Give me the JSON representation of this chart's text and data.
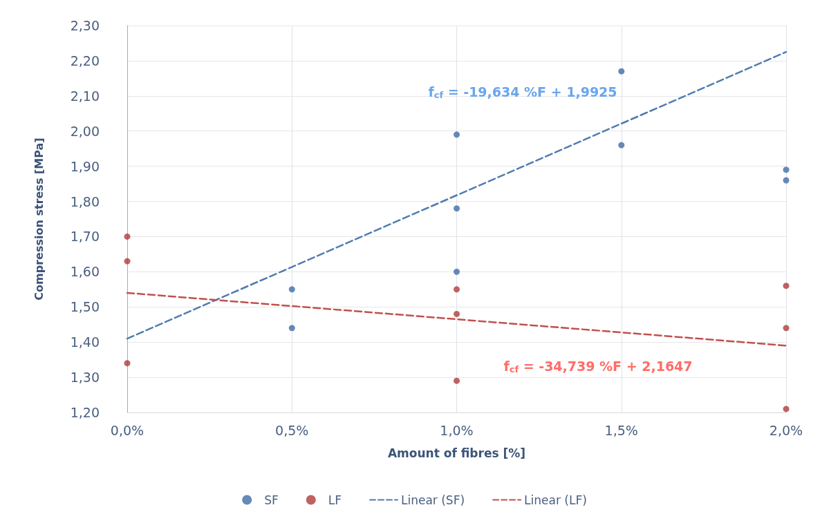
{
  "chart_data": {
    "type": "scatter",
    "xlabel": "Amount of fibres [%]",
    "ylabel": "Compression stress [MPa]",
    "xlim": [
      0,
      2
    ],
    "xticks": [
      {
        "value": 0,
        "label": "0,0%"
      },
      {
        "value": 0.5,
        "label": "0,5%"
      },
      {
        "value": 1,
        "label": "1,0%"
      },
      {
        "value": 1.5,
        "label": "1,5%"
      },
      {
        "value": 2,
        "label": "2,0%"
      }
    ],
    "ylim": [
      1.2,
      2.3
    ],
    "yticks": [
      {
        "value": 1.2,
        "label": "1,20"
      },
      {
        "value": 1.3,
        "label": "1,30"
      },
      {
        "value": 1.4,
        "label": "1,40"
      },
      {
        "value": 1.5,
        "label": "1,50"
      },
      {
        "value": 1.6,
        "label": "1,60"
      },
      {
        "value": 1.7,
        "label": "1,70"
      },
      {
        "value": 1.8,
        "label": "1,80"
      },
      {
        "value": 1.9,
        "label": "1,90"
      },
      {
        "value": 2.0,
        "label": "2,00"
      },
      {
        "value": 2.1,
        "label": "2,10"
      },
      {
        "value": 2.2,
        "label": "2,20"
      },
      {
        "value": 2.3,
        "label": "2,30"
      }
    ],
    "grid": true,
    "legend": "bottom",
    "series": [
      {
        "name": "SF",
        "marker": "circle",
        "color": "#3e6da6",
        "x": [
          0.5,
          0.5,
          1,
          1,
          1,
          1.5,
          1.5,
          2,
          2
        ],
        "values": [
          1.55,
          1.44,
          1.99,
          1.78,
          1.6,
          2.17,
          1.96,
          1.89,
          1.86
        ]
      },
      {
        "name": "LF",
        "marker": "circle",
        "color": "#b23b3b",
        "x": [
          0,
          0,
          0,
          1,
          1,
          1,
          2,
          2,
          2
        ],
        "values": [
          1.7,
          1.63,
          1.34,
          1.55,
          1.48,
          1.29,
          1.56,
          1.44,
          1.21
        ]
      },
      {
        "name": "Linear (SF)",
        "type": "line",
        "marker": "none",
        "color": "#4f7bb0",
        "line_style": "dashed",
        "x": [
          0,
          2
        ],
        "values": [
          1.41,
          2.225
        ]
      },
      {
        "name": "Linear (LF)",
        "type": "line",
        "marker": "none",
        "color": "#c0504d",
        "line_style": "dashed",
        "x": [
          0,
          2
        ],
        "values": [
          1.54,
          1.39
        ]
      }
    ],
    "annotations": [
      "f$_{cf}$ = -19,634 %F + 1,9925",
      "f$_{cf}$ = -34,739 %F + 2,1647"
    ]
  }
}
